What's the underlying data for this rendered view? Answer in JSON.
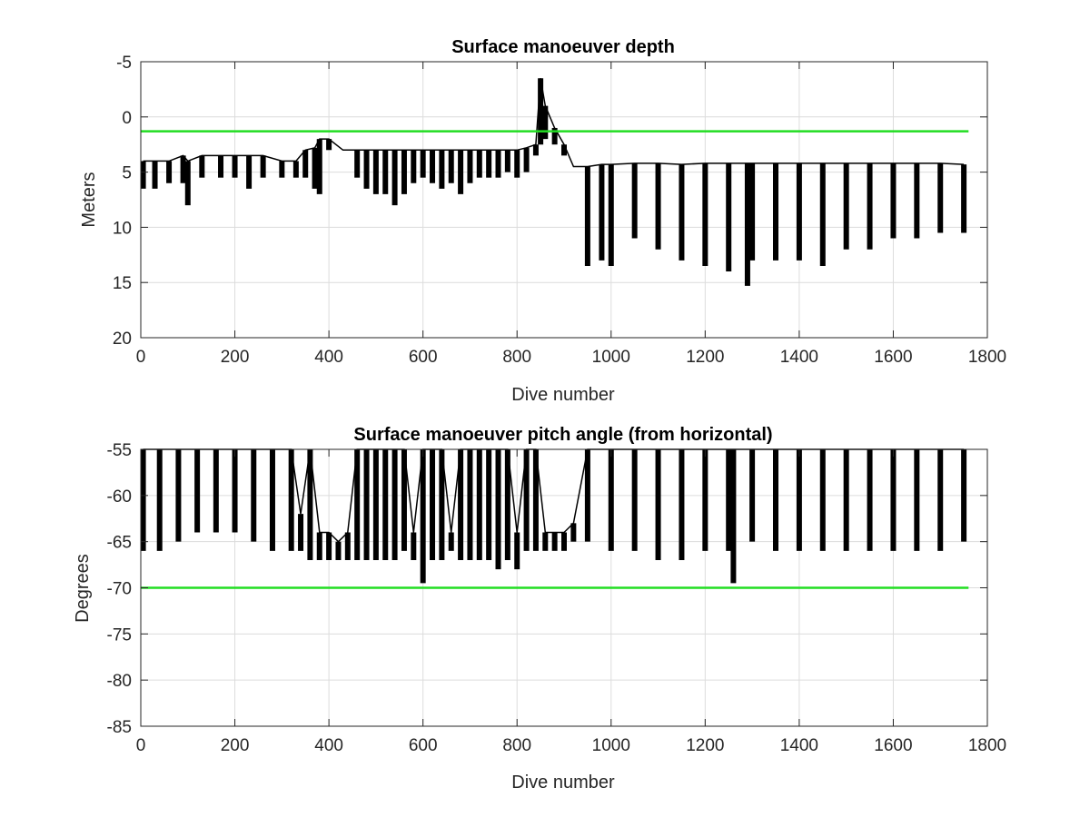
{
  "chart_data": [
    {
      "type": "line",
      "title": "Surface manoeuver depth",
      "xlabel": "Dive number",
      "ylabel": "Meters",
      "xlim": [
        0,
        1800
      ],
      "ylim": [
        -5,
        20
      ],
      "y_reversed": true,
      "xticks": [
        0,
        200,
        400,
        600,
        800,
        1000,
        1200,
        1400,
        1600,
        1800
      ],
      "yticks": [
        -5,
        0,
        5,
        10,
        15,
        20
      ],
      "grid": true,
      "colors": {
        "series": "#000000",
        "threshold": "#22dd22"
      },
      "series": [
        {
          "style": "vertical-range",
          "x": [
            5,
            30,
            60,
            90,
            100,
            130,
            170,
            200,
            230,
            260,
            300,
            330,
            350,
            370,
            380,
            400,
            430,
            460,
            480,
            500,
            520,
            540,
            560,
            580,
            600,
            620,
            640,
            660,
            680,
            700,
            720,
            740,
            760,
            780,
            800,
            820,
            840,
            850,
            860,
            880,
            900,
            920,
            950,
            980,
            1000,
            1050,
            1100,
            1150,
            1200,
            1250,
            1290,
            1300,
            1350,
            1400,
            1450,
            1500,
            1550,
            1600,
            1650,
            1700,
            1750
          ],
          "y_min": [
            4,
            4,
            4,
            3.5,
            4,
            3.5,
            3.5,
            3.5,
            3.5,
            3.5,
            4,
            4,
            3,
            2.8,
            2,
            2,
            3,
            3,
            3,
            3,
            3,
            3,
            3,
            3,
            3,
            3,
            3,
            3,
            3,
            3,
            3,
            3,
            3,
            3,
            3,
            2.8,
            2.5,
            -3.5,
            -1,
            1,
            2.5,
            4.5,
            4.5,
            4.3,
            4.3,
            4.2,
            4.2,
            4.3,
            4.2,
            4.2,
            4.2,
            4.2,
            4.2,
            4.2,
            4.2,
            4.2,
            4.2,
            4.2,
            4.2,
            4.2,
            4.3
          ],
          "y_max": [
            6.5,
            6.5,
            6,
            6,
            8,
            5.5,
            5.5,
            5.5,
            6.5,
            5.5,
            5.5,
            5.5,
            5.5,
            6.5,
            7,
            3,
            3,
            5.5,
            6.5,
            7,
            7,
            8,
            7,
            6,
            5.5,
            6,
            6.5,
            6,
            7,
            6,
            5.5,
            5.5,
            5.5,
            5,
            5.5,
            5,
            3.5,
            2.5,
            2,
            2.5,
            3.5,
            4.5,
            13.5,
            13,
            13.5,
            11,
            12,
            13,
            13.5,
            14,
            15.3,
            13,
            13,
            13,
            13.5,
            12,
            12,
            11,
            11,
            10.5,
            10.5
          ]
        },
        {
          "name": "",
          "style": "threshold",
          "x": [
            0,
            1760
          ],
          "values": [
            1.3,
            1.3
          ]
        }
      ]
    },
    {
      "type": "line",
      "title": "Surface manoeuver pitch angle (from horizontal)",
      "xlabel": "Dive number",
      "ylabel": "Degrees",
      "xlim": [
        0,
        1800
      ],
      "ylim": [
        -85,
        -55
      ],
      "xticks": [
        0,
        200,
        400,
        600,
        800,
        1000,
        1200,
        1400,
        1600,
        1800
      ],
      "yticks": [
        -55,
        -60,
        -65,
        -70,
        -75,
        -80,
        -85
      ],
      "grid": true,
      "colors": {
        "series": "#000000",
        "threshold": "#22dd22"
      },
      "series": [
        {
          "style": "vertical-range",
          "x": [
            5,
            40,
            80,
            120,
            160,
            200,
            240,
            280,
            320,
            340,
            360,
            380,
            400,
            420,
            440,
            460,
            480,
            500,
            520,
            540,
            560,
            580,
            600,
            620,
            640,
            660,
            680,
            700,
            720,
            740,
            760,
            780,
            800,
            820,
            840,
            860,
            880,
            900,
            920,
            950,
            1000,
            1050,
            1100,
            1150,
            1200,
            1250,
            1260,
            1300,
            1350,
            1400,
            1450,
            1500,
            1550,
            1600,
            1650,
            1700,
            1750
          ],
          "y_top": [
            -55,
            -55,
            -55,
            -55,
            -55,
            -55,
            -55,
            -55,
            -55,
            -62,
            -55,
            -64,
            -64,
            -65,
            -64,
            -55,
            -55,
            -55,
            -55,
            -55,
            -55,
            -64,
            -55,
            -55,
            -55,
            -64,
            -55,
            -55,
            -55,
            -55,
            -55,
            -55,
            -64,
            -55,
            -55,
            -64,
            -64,
            -64,
            -63,
            -55,
            -55,
            -55,
            -55,
            -55,
            -55,
            -55,
            -55,
            -55,
            -55,
            -55,
            -55,
            -55,
            -55,
            -55,
            -55,
            -55,
            -55
          ],
          "y_bottom": [
            -66,
            -66,
            -65,
            -64,
            -64,
            -64,
            -65,
            -66,
            -66,
            -66,
            -67,
            -67,
            -67,
            -67,
            -67,
            -67,
            -67,
            -67,
            -67,
            -67,
            -66,
            -67,
            -69.5,
            -67,
            -67,
            -66,
            -67,
            -67,
            -67,
            -67,
            -68,
            -67,
            -68,
            -66,
            -66,
            -66,
            -66,
            -66,
            -65,
            -65,
            -66,
            -66,
            -67,
            -67,
            -66,
            -66,
            -69.5,
            -65,
            -66,
            -66,
            -66,
            -66,
            -66,
            -66,
            -66,
            -66,
            -65
          ]
        },
        {
          "name": "",
          "style": "threshold",
          "x": [
            0,
            1760
          ],
          "values": [
            -70,
            -70
          ]
        }
      ]
    }
  ]
}
